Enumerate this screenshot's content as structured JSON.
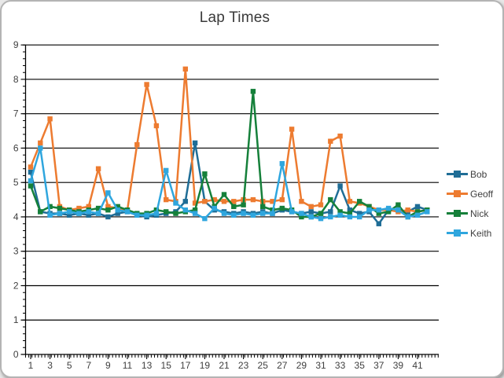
{
  "window": {
    "background": "#ffffff",
    "frame_border_color": "#b4b4b4",
    "gridline_color": "#000000",
    "axis_label_color": "#3f3f3f"
  },
  "chart_data": {
    "type": "line",
    "title": "Lap Times",
    "xlabel": "",
    "ylabel": "",
    "ylim": [
      0,
      9
    ],
    "y_tick_labels": [
      "0",
      "1",
      "2",
      "3",
      "4",
      "5",
      "6",
      "7",
      "8",
      "9"
    ],
    "y_major_step": 1,
    "y_minor_step": 0.2,
    "grid": "horizontal-major-black",
    "legend_position": "right",
    "x_count": 42,
    "x_tick_labels": [
      "1",
      "3",
      "5",
      "7",
      "9",
      "11",
      "13",
      "15",
      "17",
      "19",
      "21",
      "23",
      "25",
      "27",
      "29",
      "31",
      "33",
      "35",
      "37",
      "39",
      "41"
    ],
    "series": [
      {
        "name": "Bob",
        "color": "#1F6D96",
        "values": [
          5.3,
          4.15,
          4.1,
          4.1,
          4.05,
          4.1,
          4.05,
          4.1,
          4.0,
          4.1,
          4.15,
          4.05,
          4.0,
          4.05,
          4.1,
          4.15,
          4.45,
          6.15,
          4.45,
          4.2,
          4.15,
          4.1,
          4.15,
          4.1,
          4.15,
          4.1,
          4.2,
          4.15,
          4.1,
          4.15,
          4.1,
          4.15,
          4.9,
          4.2,
          4.1,
          4.15,
          3.8,
          4.2,
          4.2,
          4.15,
          4.3,
          4.2
        ]
      },
      {
        "name": "Geoff",
        "color": "#ED7B30",
        "values": [
          5.45,
          6.15,
          6.85,
          4.3,
          4.2,
          4.25,
          4.3,
          5.4,
          4.3,
          4.25,
          4.2,
          6.1,
          7.85,
          6.65,
          4.5,
          4.45,
          8.3,
          4.4,
          4.45,
          4.5,
          4.45,
          4.45,
          4.5,
          4.5,
          4.45,
          4.45,
          4.5,
          6.55,
          4.45,
          4.3,
          4.35,
          6.2,
          6.35,
          4.45,
          4.4,
          4.3,
          4.2,
          4.2,
          4.15,
          4.2,
          4.15,
          4.2
        ]
      },
      {
        "name": "Nick",
        "color": "#15803A",
        "values": [
          4.9,
          4.15,
          4.3,
          4.25,
          4.2,
          4.15,
          4.2,
          4.25,
          4.2,
          4.3,
          4.2,
          4.1,
          4.1,
          4.2,
          4.15,
          4.1,
          4.15,
          4.2,
          5.25,
          4.3,
          4.65,
          4.3,
          4.35,
          7.65,
          4.3,
          4.2,
          4.25,
          4.2,
          4.0,
          4.0,
          4.1,
          4.5,
          4.15,
          4.1,
          4.45,
          4.3,
          4.1,
          4.15,
          4.35,
          4.0,
          4.15,
          4.2
        ]
      },
      {
        "name": "Keith",
        "color": "#2FA6DE",
        "values": [
          5.05,
          6.0,
          4.05,
          4.1,
          4.15,
          4.1,
          4.15,
          4.1,
          4.7,
          4.2,
          4.15,
          4.05,
          4.05,
          4.1,
          5.35,
          4.4,
          4.2,
          4.1,
          3.95,
          4.25,
          4.1,
          4.05,
          4.1,
          4.05,
          4.1,
          4.1,
          5.55,
          4.15,
          4.1,
          4.0,
          3.95,
          4.0,
          4.05,
          4.0,
          4.0,
          4.2,
          4.2,
          4.25,
          4.2,
          4.0,
          4.05,
          4.15
        ]
      }
    ]
  }
}
